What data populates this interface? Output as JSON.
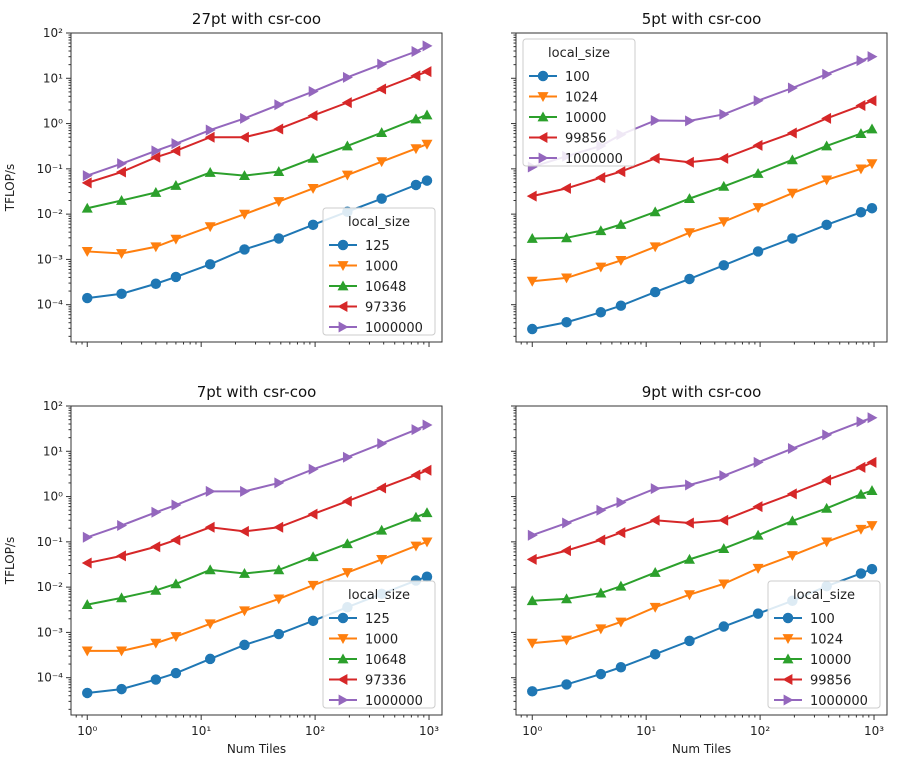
{
  "chart_data": [
    {
      "type": "line",
      "title": "27pt with csr-coo",
      "xlabel": "",
      "ylabel": "TFLOP/s",
      "xscale": "log",
      "yscale": "log",
      "xlim": [
        0.72,
        1300
      ],
      "ylim": [
        1.5e-05,
        100
      ],
      "legend": {
        "title": "local_size",
        "placement": "lower right"
      },
      "x": [
        1,
        2,
        4,
        6,
        12,
        24,
        48,
        96,
        192,
        384,
        768,
        960
      ],
      "series": [
        {
          "name": "125",
          "color": "#1f77b4",
          "marker": "circle",
          "values": [
            0.00014,
            0.000174,
            0.00029,
            0.00041,
            0.00078,
            0.00166,
            0.0029,
            0.0058,
            0.0113,
            0.022,
            0.044,
            0.055
          ]
        },
        {
          "name": "1000",
          "color": "#ff7f0e",
          "marker": "triangle-down",
          "values": [
            0.0015,
            0.00135,
            0.0019,
            0.0028,
            0.0053,
            0.01,
            0.019,
            0.037,
            0.073,
            0.144,
            0.28,
            0.35
          ]
        },
        {
          "name": "10648",
          "color": "#2ca02c",
          "marker": "triangle-up",
          "values": [
            0.0135,
            0.02,
            0.03,
            0.043,
            0.083,
            0.071,
            0.087,
            0.17,
            0.32,
            0.63,
            1.26,
            1.55
          ]
        },
        {
          "name": "97336",
          "color": "#d62728",
          "marker": "triangle-left",
          "values": [
            0.049,
            0.085,
            0.18,
            0.25,
            0.5,
            0.5,
            0.76,
            1.5,
            2.9,
            5.8,
            11.4,
            14
          ]
        },
        {
          "name": "1000000",
          "color": "#9467bd",
          "marker": "triangle-right",
          "values": [
            0.071,
            0.13,
            0.25,
            0.36,
            0.72,
            1.3,
            2.6,
            5.1,
            10.5,
            20.5,
            39,
            52
          ]
        }
      ]
    },
    {
      "type": "line",
      "title": "5pt with csr-coo",
      "xlabel": "",
      "ylabel": "",
      "xscale": "log",
      "yscale": "log",
      "xlim": [
        0.72,
        1300
      ],
      "ylim": [
        1.5e-05,
        100
      ],
      "legend": {
        "title": "local_size",
        "placement": "upper left"
      },
      "x": [
        1,
        2,
        4,
        6,
        12,
        24,
        48,
        96,
        192,
        384,
        768,
        960
      ],
      "series": [
        {
          "name": "100",
          "color": "#1f77b4",
          "marker": "circle",
          "values": [
            2.9e-05,
            4.1e-05,
            6.8e-05,
            9.5e-05,
            0.00019,
            0.00037,
            0.00074,
            0.0015,
            0.0029,
            0.0058,
            0.011,
            0.0135
          ]
        },
        {
          "name": "1024",
          "color": "#ff7f0e",
          "marker": "triangle-down",
          "values": [
            0.00033,
            0.00039,
            0.00068,
            0.00095,
            0.0019,
            0.0039,
            0.0068,
            0.014,
            0.029,
            0.057,
            0.1,
            0.13
          ]
        },
        {
          "name": "10000",
          "color": "#2ca02c",
          "marker": "triangle-up",
          "values": [
            0.0029,
            0.003,
            0.0043,
            0.0059,
            0.0112,
            0.022,
            0.041,
            0.079,
            0.158,
            0.32,
            0.6,
            0.76
          ]
        },
        {
          "name": "99856",
          "color": "#d62728",
          "marker": "triangle-left",
          "values": [
            0.025,
            0.037,
            0.064,
            0.087,
            0.17,
            0.14,
            0.17,
            0.33,
            0.62,
            1.3,
            2.5,
            3.2
          ]
        },
        {
          "name": "1000000",
          "color": "#9467bd",
          "marker": "triangle-right",
          "values": [
            0.11,
            0.19,
            0.32,
            0.57,
            1.17,
            1.15,
            1.6,
            3.2,
            6.1,
            12.3,
            24.5,
            30
          ]
        }
      ]
    },
    {
      "type": "line",
      "title": "7pt with csr-coo",
      "xlabel": "Num Tiles",
      "ylabel": "TFLOP/s",
      "xscale": "log",
      "yscale": "log",
      "xlim": [
        0.72,
        1300
      ],
      "ylim": [
        1.5e-05,
        100
      ],
      "legend": {
        "title": "local_size",
        "placement": "lower right"
      },
      "x": [
        1,
        2,
        4,
        6,
        12,
        24,
        48,
        96,
        192,
        384,
        768,
        960
      ],
      "series": [
        {
          "name": "125",
          "color": "#1f77b4",
          "marker": "circle",
          "values": [
            4.6e-05,
            5.6e-05,
            9.1e-05,
            0.000126,
            0.00026,
            0.00053,
            0.00092,
            0.0018,
            0.0036,
            0.0071,
            0.014,
            0.017
          ]
        },
        {
          "name": "1000",
          "color": "#ff7f0e",
          "marker": "triangle-down",
          "values": [
            0.00039,
            0.00039,
            0.00058,
            0.00081,
            0.00155,
            0.003,
            0.0055,
            0.011,
            0.021,
            0.041,
            0.081,
            0.1
          ]
        },
        {
          "name": "10648",
          "color": "#2ca02c",
          "marker": "triangle-up",
          "values": [
            0.0041,
            0.0058,
            0.0085,
            0.0118,
            0.024,
            0.02,
            0.024,
            0.047,
            0.091,
            0.18,
            0.35,
            0.44
          ]
        },
        {
          "name": "97336",
          "color": "#d62728",
          "marker": "triangle-left",
          "values": [
            0.034,
            0.049,
            0.078,
            0.11,
            0.21,
            0.17,
            0.21,
            0.41,
            0.79,
            1.55,
            3.0,
            3.8
          ]
        },
        {
          "name": "1000000",
          "color": "#9467bd",
          "marker": "triangle-right",
          "values": [
            0.126,
            0.23,
            0.45,
            0.65,
            1.3,
            1.3,
            2.0,
            4.0,
            7.4,
            14.8,
            30,
            38
          ]
        }
      ]
    },
    {
      "type": "line",
      "title": "9pt with csr-coo",
      "xlabel": "Num Tiles",
      "ylabel": "",
      "xscale": "log",
      "yscale": "log",
      "xlim": [
        0.72,
        1300
      ],
      "ylim": [
        1.5e-05,
        100
      ],
      "legend": {
        "title": "local_size",
        "placement": "lower right"
      },
      "x": [
        1,
        2,
        4,
        6,
        12,
        24,
        48,
        96,
        192,
        384,
        768,
        960
      ],
      "series": [
        {
          "name": "100",
          "color": "#1f77b4",
          "marker": "circle",
          "values": [
            5e-05,
            7.1e-05,
            0.00012,
            0.00017,
            0.00033,
            0.00065,
            0.00135,
            0.0026,
            0.005,
            0.0105,
            0.02,
            0.025
          ]
        },
        {
          "name": "1024",
          "color": "#ff7f0e",
          "marker": "triangle-down",
          "values": [
            0.00058,
            0.00068,
            0.0012,
            0.0017,
            0.0036,
            0.0068,
            0.0118,
            0.026,
            0.05,
            0.1,
            0.19,
            0.23
          ]
        },
        {
          "name": "10000",
          "color": "#2ca02c",
          "marker": "triangle-up",
          "values": [
            0.005,
            0.0055,
            0.0074,
            0.0105,
            0.021,
            0.041,
            0.071,
            0.14,
            0.29,
            0.55,
            1.12,
            1.35
          ]
        },
        {
          "name": "99856",
          "color": "#d62728",
          "marker": "triangle-left",
          "values": [
            0.041,
            0.064,
            0.11,
            0.16,
            0.3,
            0.26,
            0.3,
            0.6,
            1.15,
            2.3,
            4.4,
            5.7
          ]
        },
        {
          "name": "1000000",
          "color": "#9467bd",
          "marker": "triangle-right",
          "values": [
            0.14,
            0.26,
            0.5,
            0.74,
            1.5,
            1.8,
            2.9,
            5.7,
            11.5,
            23,
            45,
            55
          ]
        }
      ]
    }
  ]
}
